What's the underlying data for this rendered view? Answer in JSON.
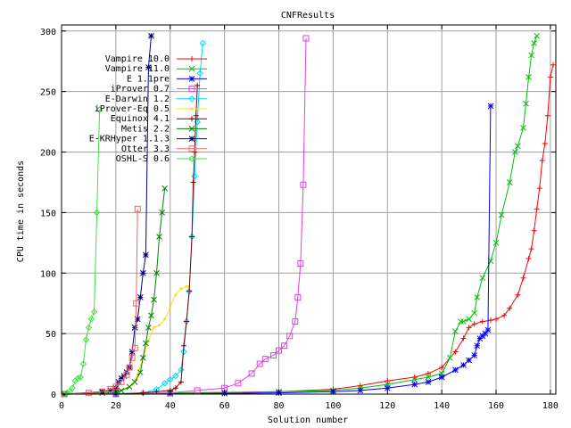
{
  "chart_data": {
    "type": "line",
    "title": "CNFResults",
    "xlabel": "Solution number",
    "ylabel": "CPU time in seconds",
    "xlim": [
      0,
      182
    ],
    "ylim": [
      0,
      305
    ],
    "xticks": [
      0,
      20,
      40,
      60,
      80,
      100,
      120,
      140,
      160,
      180
    ],
    "yticks": [
      0,
      50,
      100,
      150,
      200,
      250,
      300
    ],
    "grid": true,
    "legend_position": "top-left",
    "series": [
      {
        "name": "Vampire 10.0",
        "color": "#ff0000",
        "marker": "plus",
        "x": [
          1,
          20,
          40,
          60,
          80,
          100,
          110,
          120,
          130,
          135,
          140,
          145,
          148,
          150,
          152,
          155,
          158,
          160,
          163,
          165,
          168,
          170,
          172,
          173,
          174,
          175,
          176,
          177,
          178,
          179,
          180,
          181
        ],
        "y": [
          0,
          0,
          0.5,
          1,
          2,
          4,
          7,
          11,
          14,
          17,
          22,
          35,
          46,
          55,
          58,
          60,
          61,
          62,
          65,
          71,
          82,
          96,
          112,
          120,
          135,
          153,
          170,
          193,
          207,
          230,
          262,
          272
        ]
      },
      {
        "name": "Vampire 11.0",
        "color": "#00c000",
        "marker": "x",
        "x": [
          1,
          20,
          40,
          60,
          80,
          100,
          110,
          120,
          130,
          135,
          140,
          143,
          145,
          147,
          148,
          150,
          152,
          153,
          155,
          158,
          160,
          162,
          165,
          167,
          168,
          170,
          171,
          172,
          173,
          174,
          175
        ],
        "y": [
          0,
          0.5,
          1,
          1.5,
          2,
          3,
          5,
          8,
          12,
          14,
          17,
          30,
          52,
          60,
          60,
          62,
          67,
          80,
          96,
          110,
          125,
          148,
          175,
          200,
          205,
          220,
          240,
          262,
          280,
          290,
          296
        ]
      },
      {
        "name": "E 1.1pre",
        "color": "#0000ff",
        "marker": "star",
        "x": [
          1,
          20,
          40,
          60,
          80,
          100,
          110,
          120,
          130,
          135,
          140,
          145,
          148,
          150,
          152,
          153,
          154,
          155,
          156,
          157,
          158
        ],
        "y": [
          0,
          0,
          0.3,
          0.5,
          1,
          2,
          3,
          5,
          8,
          10,
          14,
          20,
          24,
          28,
          32,
          40,
          46,
          48,
          50,
          53,
          238
        ]
      },
      {
        "name": "iProver 0.7",
        "color": "#e040e0",
        "marker": "square",
        "x": [
          1,
          20,
          40,
          50,
          60,
          65,
          70,
          73,
          75,
          78,
          80,
          82,
          84,
          86,
          87,
          88,
          89,
          90
        ],
        "y": [
          0,
          0,
          1,
          3,
          5,
          9,
          17,
          25,
          29,
          32,
          36,
          40,
          48,
          60,
          80,
          108,
          173,
          294
        ]
      },
      {
        "name": "E-Darwin 1.2",
        "color": "#00d8ff",
        "marker": "diamond",
        "x": [
          1,
          20,
          30,
          35,
          38,
          40,
          42,
          44,
          45,
          46,
          47,
          48,
          49,
          50,
          51,
          52
        ],
        "y": [
          0,
          0,
          1,
          4,
          9,
          12,
          15,
          20,
          35,
          60,
          85,
          130,
          180,
          225,
          265,
          290
        ]
      },
      {
        "name": "iProver-Eq 0.5",
        "color": "#ffe000",
        "marker": "dot",
        "x": [
          1,
          15,
          20,
          22,
          24,
          26,
          28,
          30,
          32,
          34,
          36,
          38,
          40,
          42,
          44,
          46,
          47
        ],
        "y": [
          0,
          1,
          2,
          3,
          5,
          8,
          16,
          30,
          44,
          55,
          57,
          62,
          72,
          82,
          87,
          89,
          89
        ]
      },
      {
        "name": "Equinox 4.1",
        "color": "#800000",
        "marker": "plus",
        "x": [
          1,
          20,
          30,
          35,
          40,
          42,
          44,
          45,
          46,
          47,
          48,
          48.5,
          49,
          49.5,
          50
        ],
        "y": [
          0,
          0,
          1,
          2,
          3,
          5,
          10,
          40,
          60,
          85,
          130,
          175,
          200,
          230,
          255
        ]
      },
      {
        "name": "Metis 2.2",
        "color": "#008000",
        "marker": "x",
        "x": [
          1,
          15,
          20,
          22,
          25,
          27,
          29,
          30,
          31,
          32,
          33,
          34,
          35,
          36,
          37,
          38
        ],
        "y": [
          0,
          1,
          2,
          3,
          6,
          10,
          18,
          30,
          42,
          55,
          65,
          78,
          100,
          130,
          150,
          170
        ]
      },
      {
        "name": "E-KRHyper 1.1.3",
        "color": "#000080",
        "marker": "star",
        "x": [
          1,
          15,
          18,
          20,
          21,
          22,
          23,
          24,
          25,
          26,
          27,
          28,
          29,
          30,
          31,
          32,
          33
        ],
        "y": [
          0,
          2,
          3,
          5,
          10,
          13,
          15,
          18,
          22,
          35,
          55,
          62,
          80,
          100,
          115,
          270,
          296
        ]
      },
      {
        "name": "Otter 3.3",
        "color": "#ff6060",
        "marker": "square",
        "x": [
          1,
          10,
          15,
          18,
          20,
          22,
          24,
          25,
          26,
          27,
          27.5,
          28
        ],
        "y": [
          0,
          1,
          2,
          4,
          6,
          10,
          16,
          22,
          30,
          38,
          75,
          153
        ]
      },
      {
        "name": "OSHL-S 0.6",
        "color": "#40e040",
        "marker": "diamond",
        "x": [
          1,
          2,
          3,
          4,
          5,
          6,
          7,
          8,
          9,
          10,
          11,
          12,
          13,
          14
        ],
        "y": [
          0,
          1,
          2,
          5,
          11,
          13,
          14,
          25,
          45,
          55,
          62,
          68,
          150,
          235
        ]
      }
    ]
  }
}
